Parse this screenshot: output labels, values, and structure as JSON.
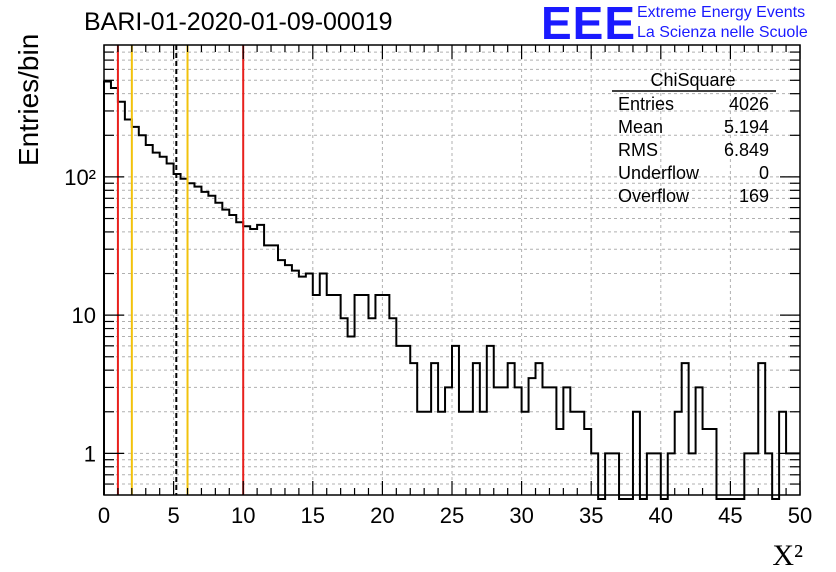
{
  "header": {
    "run_title": "BARI-01-2020-01-09-00019",
    "logo_text": "EEE",
    "logo_line1": "Extreme Energy Events",
    "logo_line2": "La Scienza nelle Scuole"
  },
  "stats_box": {
    "title": "ChiSquare",
    "rows": [
      {
        "label": "Entries",
        "value": "4026"
      },
      {
        "label": "Mean",
        "value": "5.194"
      },
      {
        "label": "RMS",
        "value": "6.849"
      },
      {
        "label": "Underflow",
        "value": "0"
      },
      {
        "label": "Overflow",
        "value": "169"
      }
    ]
  },
  "colors": {
    "red_line": "#e8201c",
    "yellow_line": "#f2c20c",
    "logo_blue": "#1a1aff",
    "grid": "#b0b0b0"
  },
  "chart_data": {
    "type": "bar",
    "style": "step-histogram",
    "xlabel": "X²",
    "ylabel": "Entries/bin",
    "xlim": [
      0,
      50
    ],
    "ylim": [
      0.5,
      900
    ],
    "yscale": "log",
    "grid": true,
    "x_ticks": [
      "0",
      "5",
      "10",
      "15",
      "20",
      "25",
      "30",
      "35",
      "40",
      "45",
      "50"
    ],
    "y_ticks": [
      {
        "value": 1,
        "label": "1"
      },
      {
        "value": 10,
        "label": "10"
      },
      {
        "value": 100,
        "label": "10²"
      }
    ],
    "bin_width": 0.5,
    "bin_start": 0,
    "values": [
      490,
      440,
      350,
      260,
      230,
      200,
      170,
      150,
      140,
      125,
      105,
      97,
      90,
      85,
      78,
      73,
      65,
      58,
      53,
      47,
      44,
      42,
      45,
      32,
      32,
      25,
      23,
      21,
      19,
      20,
      14,
      20,
      14,
      14,
      9.5,
      7,
      14,
      14,
      9.5,
      14,
      14,
      9.5,
      6,
      6,
      4.5,
      2,
      2,
      4.5,
      2,
      3,
      6,
      2,
      2,
      4.5,
      2,
      6,
      3,
      3,
      4.5,
      3,
      2,
      3.5,
      4.5,
      3,
      3,
      1.5,
      3,
      2,
      2,
      1.5,
      1,
      0.4,
      1,
      1,
      0.4,
      0.4,
      2,
      0.4,
      1,
      1,
      0.4,
      1,
      2,
      4.5,
      1,
      3,
      1.5,
      1.5,
      0.4,
      0.4,
      0.4,
      0.4,
      1,
      1,
      4.5,
      1,
      0.4,
      2,
      1,
      1
    ],
    "vertical_lines": [
      {
        "x": 1,
        "color": "red",
        "style": "solid"
      },
      {
        "x": 2,
        "color": "yellow",
        "style": "solid"
      },
      {
        "x": 5.194,
        "color": "black",
        "style": "dashed"
      },
      {
        "x": 6,
        "color": "yellow",
        "style": "solid"
      },
      {
        "x": 10,
        "color": "red",
        "style": "solid"
      }
    ]
  }
}
